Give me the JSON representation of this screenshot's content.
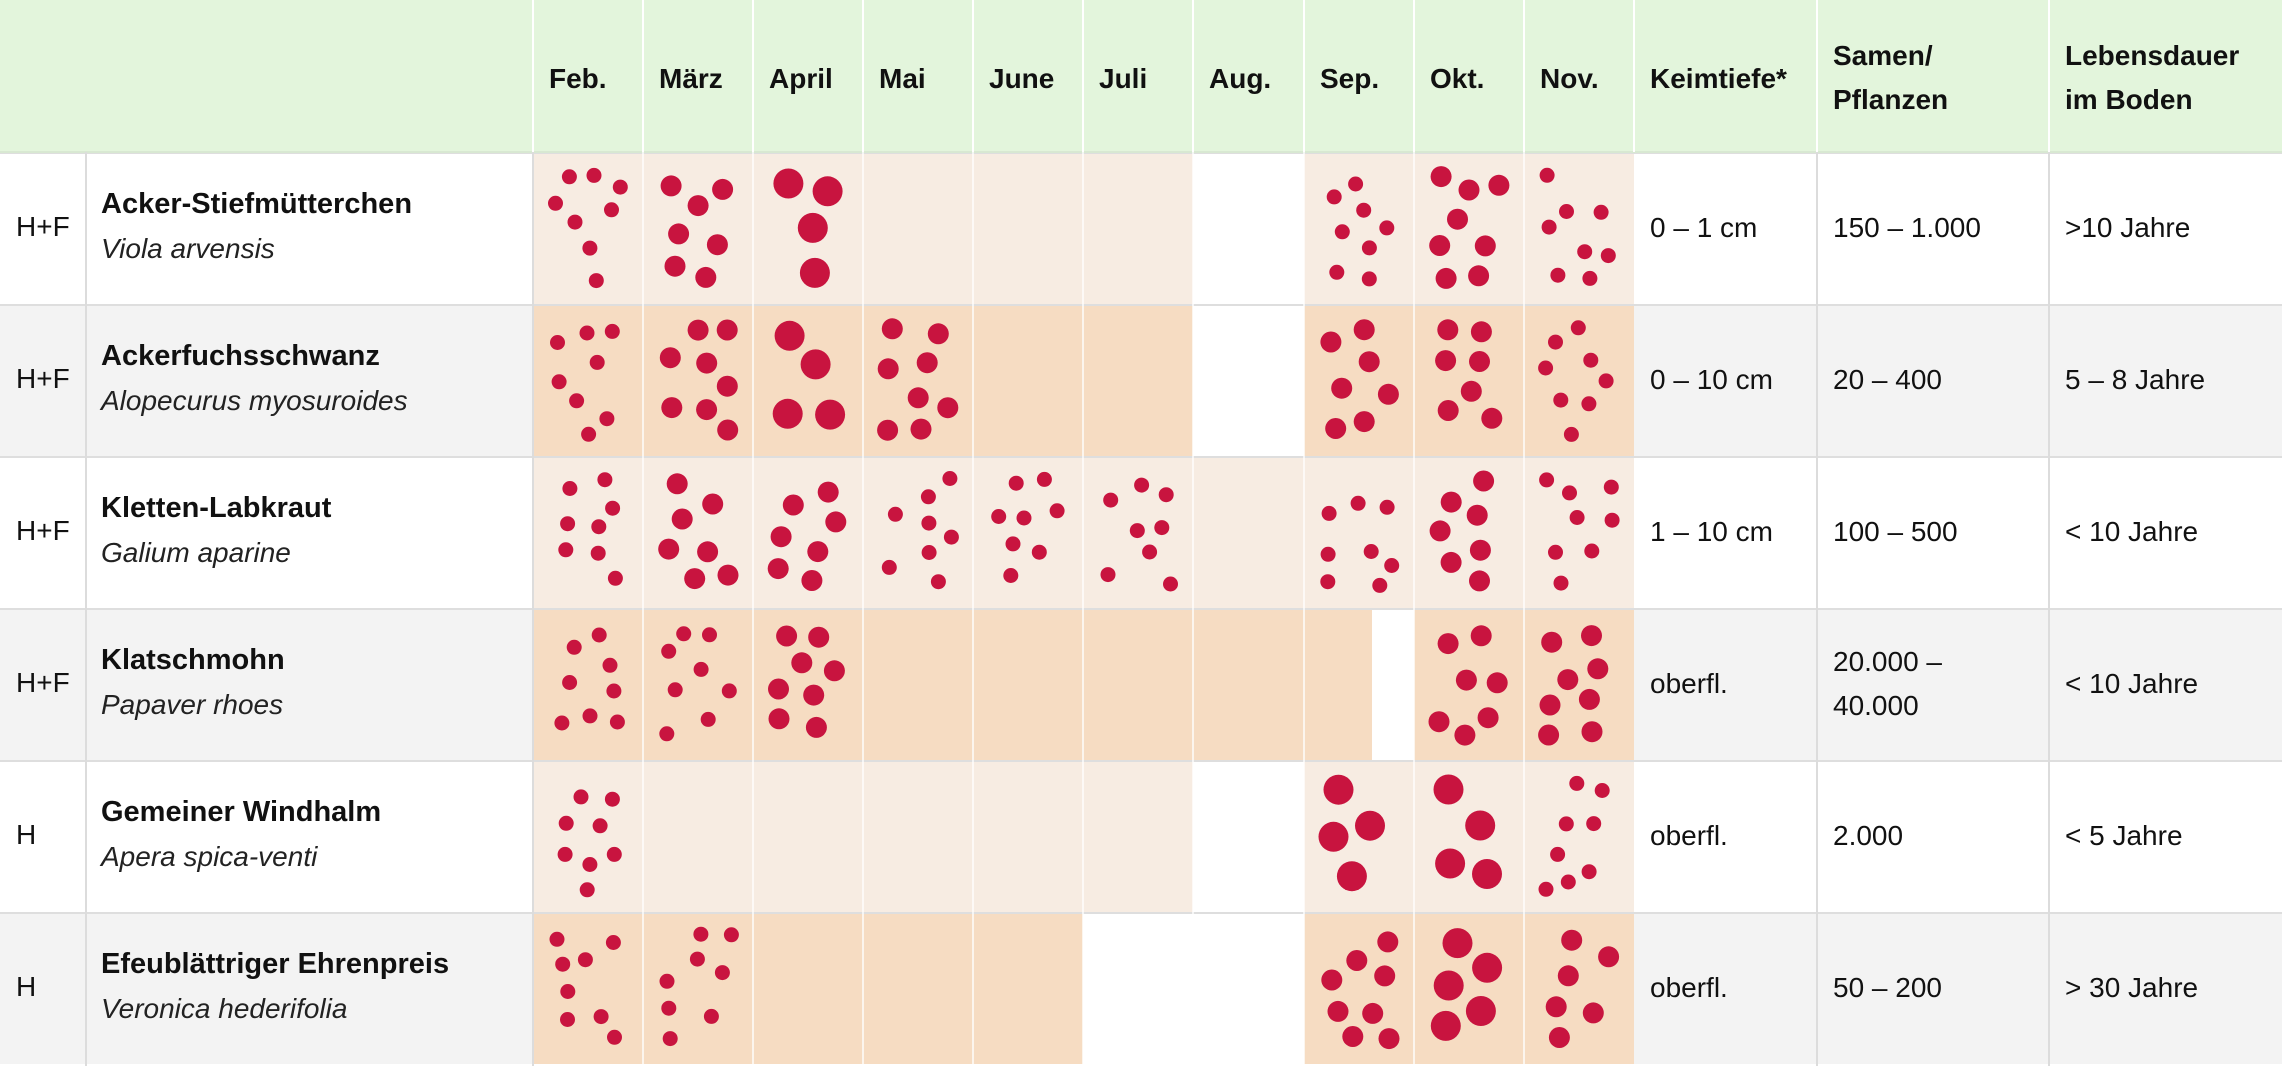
{
  "colors": {
    "header_bg": "#e3f5dc",
    "row_odd_bg": "#ffffff",
    "row_even_bg": "#f3f3f3",
    "month_light": "#f7ece2",
    "month_dark": "#f6dcc2",
    "seed_dot": "#c8143f"
  },
  "header": {
    "months": [
      "Feb.",
      "März",
      "April",
      "Mai",
      "June",
      "Juli",
      "Aug.",
      "Sep.",
      "Okt.",
      "Nov."
    ],
    "germination_depth": "Keimtiefe*",
    "seeds_per_plant": "Samen/\nPflanzen",
    "soil_lifespan": "Lebensdauer\nim Boden"
  },
  "rows": [
    {
      "code": "H+F",
      "name": "Acker-Stiefmütterchen",
      "latin": "Viola arvensis",
      "depth": "0 – 1 cm",
      "seeds": "150 – 1.000",
      "lifespan": ">10 Jahre",
      "shade": "light",
      "active_months": [
        true,
        true,
        true,
        true,
        true,
        true,
        false,
        true,
        true,
        true
      ],
      "dot_sizes": [
        "s",
        "m",
        "l",
        "",
        "",
        "",
        "",
        "s",
        "m",
        "s"
      ]
    },
    {
      "code": "H+F",
      "name": "Ackerfuchsschwanz",
      "latin": "Alopecurus myosuroides",
      "depth": "0 – 10 cm",
      "seeds": "20 – 400",
      "lifespan": "5 – 8 Jahre",
      "shade": "dark",
      "active_months": [
        true,
        true,
        true,
        true,
        true,
        true,
        false,
        true,
        true,
        true
      ],
      "dot_sizes": [
        "s",
        "m",
        "l",
        "m",
        "",
        "",
        "",
        "m",
        "m",
        "s"
      ]
    },
    {
      "code": "H+F",
      "name": "Kletten-Labkraut",
      "latin": "Galium aparine",
      "depth": "1 – 10 cm",
      "seeds": "100 – 500",
      "lifespan": "< 10 Jahre",
      "shade": "light",
      "active_months": [
        true,
        true,
        true,
        true,
        true,
        true,
        true,
        true,
        true,
        true
      ],
      "dot_sizes": [
        "s",
        "m",
        "m",
        "s",
        "s",
        "s",
        "",
        "s",
        "m",
        "s"
      ]
    },
    {
      "code": "H+F",
      "name": "Klatschmohn",
      "latin": "Papaver rhoes",
      "depth": "oberfl.",
      "seeds": "20.000 –\n40.000",
      "lifespan": "< 10 Jahre",
      "shade": "dark",
      "active_months": [
        true,
        true,
        true,
        true,
        true,
        true,
        true,
        true,
        true,
        true
      ],
      "dot_sizes": [
        "s",
        "s",
        "m",
        "",
        "",
        "",
        "",
        "",
        "m",
        "m"
      ]
    },
    {
      "code": "H",
      "name": "Gemeiner Windhalm",
      "latin": "Apera spica-venti",
      "depth": "oberfl.",
      "seeds": "2.000",
      "lifespan": "< 5 Jahre",
      "shade": "light",
      "active_months": [
        true,
        true,
        true,
        true,
        true,
        true,
        false,
        true,
        true,
        true
      ],
      "dot_sizes": [
        "s",
        "",
        "",
        "",
        "",
        "",
        "",
        "l",
        "l",
        "s"
      ]
    },
    {
      "code": "H",
      "name": "Efeublättriger Ehrenpreis",
      "latin": "Veronica hederifolia",
      "depth": "oberfl.",
      "seeds": "50 – 200",
      "lifespan": "> 30 Jahre",
      "shade": "dark",
      "active_months": [
        true,
        true,
        true,
        true,
        true,
        false,
        false,
        true,
        true,
        true
      ],
      "dot_sizes": [
        "s",
        "s",
        "",
        "",
        "",
        "",
        "",
        "m",
        "l",
        "m"
      ]
    }
  ]
}
